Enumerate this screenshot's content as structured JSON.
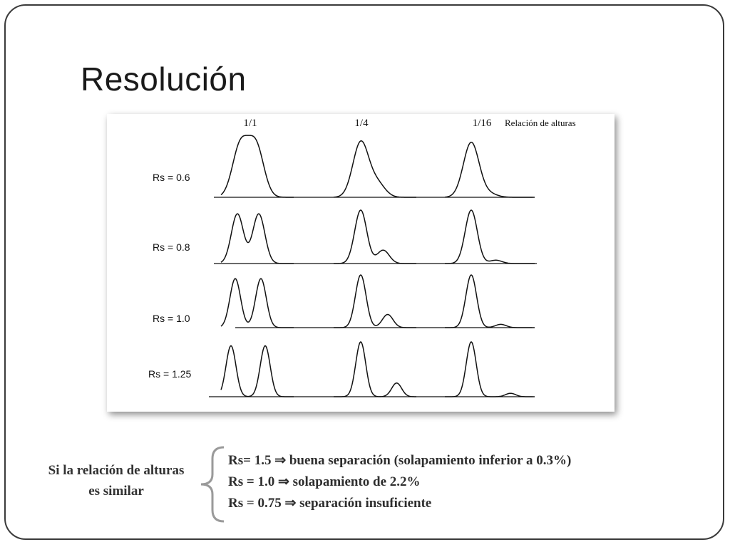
{
  "slide": {
    "title": "Resolución"
  },
  "figure": {
    "ratio_labels": [
      "1/1",
      "1/4",
      "1/16"
    ],
    "heights_label": "Relación de alturas",
    "rows": [
      {
        "rs_label": "Rs = 0.6"
      },
      {
        "rs_label": "Rs = 0.8"
      },
      {
        "rs_label": "Rs = 1.0"
      },
      {
        "rs_label": "Rs = 1.25"
      }
    ]
  },
  "summary": {
    "condition": "Si la relación de alturas es similar",
    "results": [
      "Rs= 1.5 ⇒ buena separación (solapamiento inferior a 0.3%)",
      "Rs = 1.0 ⇒ solapamiento de 2.2%",
      "Rs = 0.75 ⇒ separación insuficiente"
    ]
  }
}
